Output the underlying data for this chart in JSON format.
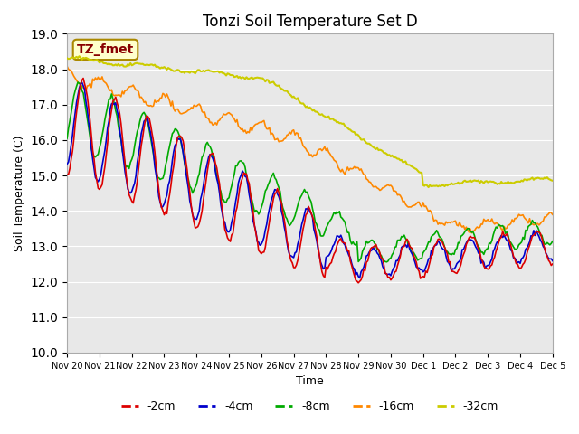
{
  "title": "Tonzi Soil Temperature Set D",
  "xlabel": "Time",
  "ylabel": "Soil Temperature (C)",
  "ylim": [
    10.0,
    19.0
  ],
  "yticks": [
    10.0,
    11.0,
    12.0,
    13.0,
    14.0,
    15.0,
    16.0,
    17.0,
    18.0,
    19.0
  ],
  "xtick_labels": [
    "Nov 20",
    "Nov 21",
    "Nov 22",
    "Nov 23",
    "Nov 24",
    "Nov 25",
    "Nov 26",
    "Nov 27",
    "Nov 28",
    "Nov 29",
    "Nov 30",
    "Dec 1",
    "Dec 2",
    "Dec 3",
    "Dec 4",
    "Dec 5"
  ],
  "legend_labels": [
    "-2cm",
    "-4cm",
    "-8cm",
    "-16cm",
    "-32cm"
  ],
  "legend_colors": [
    "#dd0000",
    "#0000cc",
    "#00aa00",
    "#ff8800",
    "#cccc00"
  ],
  "line_colors": [
    "#dd0000",
    "#0000cc",
    "#00aa00",
    "#ff8800",
    "#cccc00"
  ],
  "annotation_text": "TZ_fmet",
  "annotation_bg": "#ffffcc",
  "annotation_border": "#aa8800",
  "annotation_text_color": "#880000",
  "background_color": "#ffffff",
  "plot_bg": "#e8e8e8",
  "grid_color": "#ffffff",
  "n_points": 361
}
